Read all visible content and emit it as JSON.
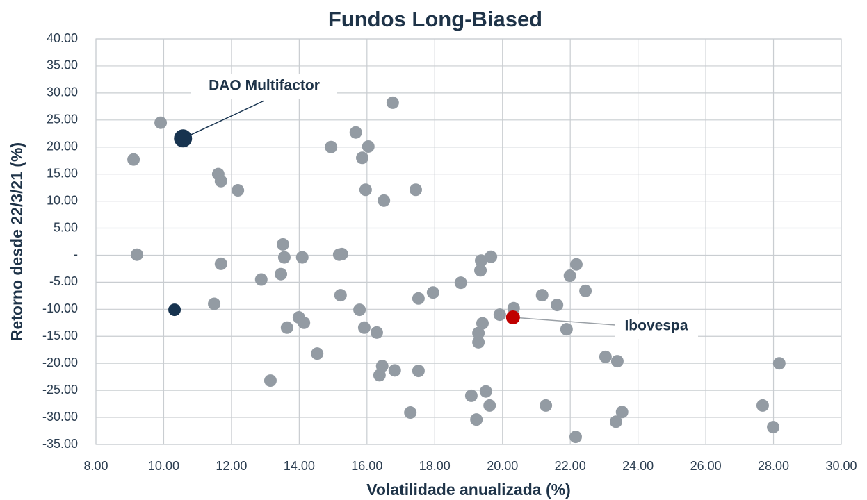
{
  "chart_data": {
    "type": "scatter",
    "title": "Fundos Long-Biased",
    "x_label": "Volatilidade anualizada (%)",
    "y_label": "Retorno desde 22/3/21 (%)",
    "xlim": [
      8,
      30
    ],
    "ylim": [
      -35,
      40
    ],
    "xticks": [
      {
        "value": 8,
        "label": "8.00"
      },
      {
        "value": 10,
        "label": "10.00"
      },
      {
        "value": 12,
        "label": "12.00"
      },
      {
        "value": 14,
        "label": "14.00"
      },
      {
        "value": 16,
        "label": "16.00"
      },
      {
        "value": 18,
        "label": "18.00"
      },
      {
        "value": 20,
        "label": "20.00"
      },
      {
        "value": 22,
        "label": "22.00"
      },
      {
        "value": 24,
        "label": "24.00"
      },
      {
        "value": 26,
        "label": "26.00"
      },
      {
        "value": 28,
        "label": "28.00"
      },
      {
        "value": 30,
        "label": "30.00"
      }
    ],
    "yticks": [
      {
        "value": -35,
        "label": "-35.00"
      },
      {
        "value": -30,
        "label": "-30.00"
      },
      {
        "value": -25,
        "label": "-25.00"
      },
      {
        "value": -20,
        "label": "-20.00"
      },
      {
        "value": -15,
        "label": "-15.00"
      },
      {
        "value": -10,
        "label": "-10.00"
      },
      {
        "value": -5,
        "label": "-5.00"
      },
      {
        "value": 0,
        "label": "-"
      },
      {
        "value": 5,
        "label": "5.00"
      },
      {
        "value": 10,
        "label": "10.00"
      },
      {
        "value": 15,
        "label": "15.00"
      },
      {
        "value": 20,
        "label": "20.00"
      },
      {
        "value": 25,
        "label": "25.00"
      },
      {
        "value": 30,
        "label": "30.00"
      },
      {
        "value": 35,
        "label": "35.00"
      },
      {
        "value": 40,
        "label": "40.00"
      }
    ],
    "grid": true,
    "series": [
      {
        "color": "#939ba3",
        "x": [
          9.11,
          9.91,
          9.21,
          11.61,
          11.69,
          12.19,
          11.69,
          11.49,
          12.88,
          13.46,
          13.52,
          13.56,
          14.09,
          13.64,
          13.99,
          14.14,
          14.53,
          13.15,
          14.94,
          15.18,
          15.26,
          15.22,
          15.67,
          16.04,
          15.86,
          15.96,
          16.5,
          16.76,
          17.44,
          15.78,
          15.92,
          16.29,
          16.45,
          16.37,
          16.82,
          17.52,
          17.28,
          17.52,
          17.95,
          18.77,
          19.08,
          19.23,
          19.51,
          19.62,
          19.29,
          19.29,
          19.41,
          19.35,
          19.37,
          19.66,
          19.92,
          20.33,
          21.17,
          21.28,
          21.61,
          21.89,
          21.99,
          22.18,
          22.45,
          22.16,
          23.04,
          23.39,
          23.35,
          23.53,
          27.68,
          27.99,
          28.17
        ],
        "values": [
          17.7,
          24.5,
          0.1,
          15.0,
          13.7,
          12.0,
          -1.6,
          -9.0,
          -4.5,
          -3.5,
          2.0,
          -0.4,
          -0.4,
          -13.4,
          -11.5,
          -12.5,
          -18.2,
          -23.2,
          20.0,
          0.1,
          0.2,
          -7.4,
          22.7,
          20.1,
          18.0,
          12.1,
          10.1,
          28.2,
          12.1,
          -10.1,
          -13.4,
          -14.3,
          -20.5,
          -22.2,
          -21.3,
          -21.4,
          -29.1,
          -8.0,
          -6.9,
          -5.1,
          -26.0,
          -30.4,
          -25.2,
          -27.8,
          -14.4,
          -16.1,
          -12.6,
          -2.8,
          -1.0,
          -0.3,
          -11.0,
          -9.8,
          -7.4,
          -27.8,
          -9.2,
          -13.7,
          -3.8,
          -1.7,
          -6.6,
          -33.6,
          -18.8,
          -19.6,
          -30.8,
          -29.0,
          -27.8,
          -31.8,
          -20.0
        ]
      },
      {
        "color": "#17334f",
        "x": [
          10.32
        ],
        "values": [
          -10.1
        ]
      }
    ],
    "annotations": [
      {
        "text": "DAO Multifactor",
        "x": 10.57,
        "y": 21.6,
        "color": "#17334f"
      },
      {
        "text": "Ibovespa",
        "x": 20.31,
        "y": -11.5,
        "color": "#c00000"
      }
    ]
  }
}
